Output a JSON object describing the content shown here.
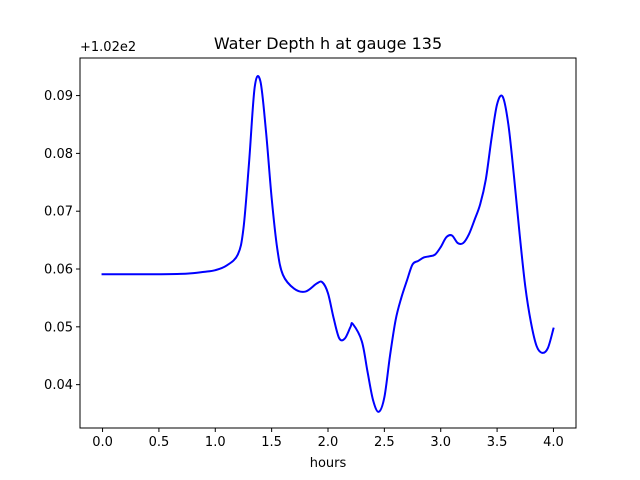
{
  "chart_data": {
    "type": "line",
    "title": "Water Depth h at gauge 135",
    "xlabel": "hours",
    "ylabel": "",
    "offset_label": "+1.02e2",
    "xlim": [
      -0.2,
      4.2
    ],
    "ylim": [
      0.0325,
      0.0965
    ],
    "grid": false,
    "xticks": [
      0.0,
      0.5,
      1.0,
      1.5,
      2.0,
      2.5,
      3.0,
      3.5,
      4.0
    ],
    "xtick_labels": [
      "0.0",
      "0.5",
      "1.0",
      "1.5",
      "2.0",
      "2.5",
      "3.0",
      "3.5",
      "4.0"
    ],
    "yticks": [
      0.04,
      0.05,
      0.06,
      0.07,
      0.08,
      0.09
    ],
    "ytick_labels": [
      "0.04",
      "0.05",
      "0.06",
      "0.07",
      "0.08",
      "0.09"
    ],
    "series": [
      {
        "color": "#0000ff",
        "x": [
          0.0,
          0.25,
          0.5,
          0.75,
          0.9,
          1.0,
          1.1,
          1.2,
          1.25,
          1.3,
          1.35,
          1.4,
          1.45,
          1.5,
          1.55,
          1.6,
          1.7,
          1.8,
          1.9,
          1.95,
          2.0,
          2.05,
          2.1,
          2.15,
          2.2,
          2.22,
          2.3,
          2.35,
          2.4,
          2.45,
          2.5,
          2.55,
          2.6,
          2.65,
          2.7,
          2.75,
          2.8,
          2.85,
          2.9,
          2.95,
          3.0,
          3.05,
          3.1,
          3.15,
          3.2,
          3.25,
          3.3,
          3.35,
          3.4,
          3.45,
          3.5,
          3.55,
          3.6,
          3.65,
          3.7,
          3.75,
          3.8,
          3.85,
          3.9,
          3.95,
          4.0
        ],
        "y": [
          0.0591,
          0.0591,
          0.0591,
          0.0592,
          0.0595,
          0.0598,
          0.0606,
          0.0625,
          0.067,
          0.0785,
          0.0915,
          0.0925,
          0.0838,
          0.0723,
          0.0635,
          0.059,
          0.0566,
          0.0561,
          0.0575,
          0.0577,
          0.0558,
          0.0515,
          0.048,
          0.048,
          0.05,
          0.0505,
          0.0475,
          0.0423,
          0.0373,
          0.0353,
          0.0378,
          0.045,
          0.0512,
          0.055,
          0.058,
          0.0608,
          0.0614,
          0.062,
          0.0622,
          0.0625,
          0.0638,
          0.0655,
          0.0658,
          0.0645,
          0.0645,
          0.066,
          0.0685,
          0.0712,
          0.0755,
          0.0825,
          0.0885,
          0.0898,
          0.085,
          0.076,
          0.066,
          0.057,
          0.0508,
          0.0467,
          0.0455,
          0.0463,
          0.0497
        ]
      }
    ]
  }
}
